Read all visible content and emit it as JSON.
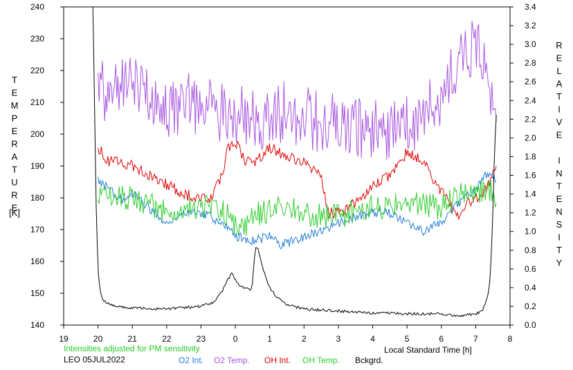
{
  "chart_data": {
    "type": "line",
    "station": "LEO 05JUL2022",
    "note": "Intensities adjusted for PM sensitivity",
    "xlabel": "Local Standard Time [h]",
    "ylabel_left": "TEMPERATURE",
    "ylabel_left_unit": "[K]",
    "ylabel_right": "RELATIVE INTENSITY",
    "x_ticks": [
      "19",
      "20",
      "21",
      "22",
      "23",
      "0",
      "1",
      "2",
      "3",
      "4",
      "5",
      "6",
      "7",
      "8"
    ],
    "x_range": [
      19,
      32
    ],
    "y_left_range": [
      140,
      240
    ],
    "y_left_ticks": [
      "140",
      "150",
      "160",
      "170",
      "180",
      "190",
      "200",
      "210",
      "220",
      "230",
      "240"
    ],
    "y_right_range": [
      0.0,
      3.4
    ],
    "y_right_ticks": [
      "0.0",
      "0.2",
      "0.4",
      "0.6",
      "0.8",
      "1.0",
      "1.2",
      "1.4",
      "1.6",
      "1.8",
      "2.0",
      "2.2",
      "2.4",
      "2.6",
      "2.8",
      "3.0",
      "3.2",
      "3.4"
    ],
    "legend": [
      "O2 Int.",
      "O2 Temp.",
      "OH Int.",
      "OH Temp.",
      "Bckgrd."
    ],
    "colors": {
      "o2_int": "#1e7bd8",
      "o2_temp": "#a855e0",
      "oh_int": "#e00000",
      "oh_temp": "#2ecc2e",
      "bckgrd": "#000000",
      "note": "#22cc22"
    },
    "series": [
      {
        "name": "O2 Temp.",
        "axis": "left",
        "color_key": "o2_temp",
        "noise": 10,
        "x": [
          20.0,
          20.5,
          21.0,
          21.5,
          22.0,
          22.5,
          23.0,
          23.5,
          24.0,
          24.5,
          25.0,
          25.5,
          26.0,
          26.5,
          27.0,
          27.5,
          28.0,
          28.5,
          29.0,
          29.5,
          30.0,
          30.5,
          31.0,
          31.4,
          31.6
        ],
        "y": [
          213,
          215,
          214,
          211,
          209,
          210,
          208,
          207,
          206,
          204,
          205,
          207,
          206,
          203,
          204,
          203,
          201,
          202,
          203,
          206,
          213,
          222,
          228,
          216,
          208
        ]
      },
      {
        "name": "OH Int.",
        "axis": "right",
        "color_key": "oh_int",
        "noise": 0.06,
        "x": [
          20.0,
          20.3,
          20.6,
          21.0,
          21.5,
          22.0,
          22.5,
          23.0,
          23.3,
          23.6,
          23.8,
          24.0,
          24.3,
          24.6,
          25.0,
          25.5,
          26.0,
          26.5,
          26.7,
          27.0,
          27.5,
          28.0,
          28.5,
          29.0,
          29.5,
          29.8,
          30.0,
          30.3,
          30.5,
          30.8,
          31.0,
          31.3,
          31.6
        ],
        "y": [
          1.9,
          1.75,
          1.75,
          1.7,
          1.6,
          1.5,
          1.4,
          1.35,
          1.35,
          1.6,
          1.9,
          1.95,
          1.75,
          1.75,
          1.9,
          1.8,
          1.75,
          1.6,
          1.2,
          1.2,
          1.3,
          1.5,
          1.6,
          1.85,
          1.75,
          1.5,
          1.45,
          1.25,
          1.15,
          1.3,
          1.35,
          1.45,
          1.7
        ]
      },
      {
        "name": "O2 Int.",
        "axis": "right",
        "color_key": "o2_int",
        "noise": 0.05,
        "x": [
          20.0,
          20.3,
          20.7,
          21.0,
          21.5,
          22.0,
          22.5,
          23.0,
          23.3,
          23.6,
          24.0,
          24.5,
          25.0,
          25.3,
          25.7,
          26.0,
          26.5,
          27.0,
          27.5,
          28.0,
          28.5,
          29.0,
          29.5,
          30.0,
          30.5,
          31.0,
          31.3,
          31.6
        ],
        "y": [
          1.55,
          1.45,
          1.35,
          1.4,
          1.25,
          1.1,
          1.2,
          1.2,
          1.15,
          1.1,
          0.95,
          0.9,
          0.95,
          0.85,
          0.9,
          0.95,
          1.0,
          1.1,
          1.15,
          1.2,
          1.2,
          1.1,
          1.0,
          1.1,
          1.3,
          1.45,
          1.6,
          1.55
        ]
      },
      {
        "name": "OH Temp.",
        "axis": "left",
        "color_key": "oh_temp",
        "noise": 4,
        "x": [
          20.0,
          20.5,
          21.0,
          21.5,
          22.0,
          22.5,
          23.0,
          23.5,
          24.0,
          24.3,
          24.6,
          25.0,
          25.5,
          26.0,
          26.5,
          27.0,
          27.5,
          28.0,
          28.5,
          29.0,
          29.5,
          30.0,
          30.5,
          31.0,
          31.4,
          31.6
        ],
        "y": [
          180,
          180,
          180,
          178,
          176,
          177,
          177,
          177,
          172,
          170,
          175,
          176,
          177,
          175,
          174,
          174,
          176,
          177,
          177,
          178,
          178,
          177,
          181,
          182,
          182,
          180
        ]
      },
      {
        "name": "Bckgrd.",
        "axis": "right",
        "color_key": "bckgrd",
        "noise": 0.015,
        "x": [
          19.85,
          19.9,
          19.95,
          20.0,
          20.05,
          20.1,
          20.2,
          20.5,
          21.0,
          22.0,
          23.0,
          23.4,
          23.6,
          23.8,
          23.9,
          24.0,
          24.1,
          24.2,
          24.35,
          24.45,
          24.5,
          24.55,
          24.6,
          24.65,
          24.7,
          24.8,
          25.0,
          25.2,
          25.5,
          26.0,
          27.0,
          28.0,
          29.0,
          30.0,
          30.5,
          31.0,
          31.2,
          31.3,
          31.4,
          31.45,
          31.5,
          31.55,
          31.6
        ],
        "y": [
          3.5,
          2.3,
          1.2,
          0.6,
          0.4,
          0.3,
          0.25,
          0.2,
          0.18,
          0.17,
          0.2,
          0.25,
          0.35,
          0.5,
          0.55,
          0.48,
          0.42,
          0.4,
          0.4,
          0.38,
          0.45,
          0.7,
          0.85,
          0.82,
          0.75,
          0.6,
          0.4,
          0.3,
          0.22,
          0.17,
          0.15,
          0.13,
          0.12,
          0.12,
          0.1,
          0.12,
          0.15,
          0.25,
          0.4,
          0.7,
          1.2,
          1.9,
          2.25
        ]
      }
    ]
  }
}
